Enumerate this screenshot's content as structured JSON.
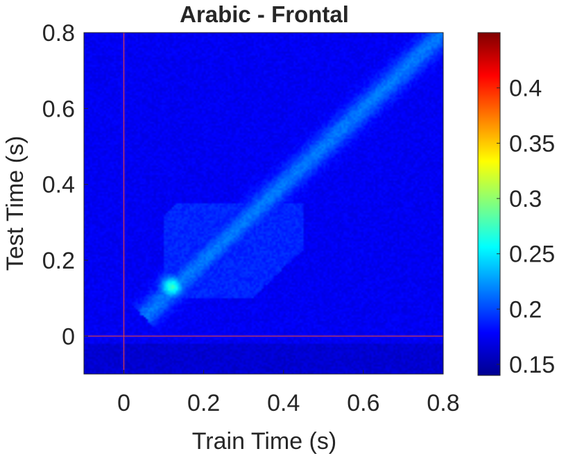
{
  "chart_data": {
    "type": "heatmap",
    "title": "Arabic -  Frontal",
    "xlabel": "Train Time (s)",
    "ylabel": "Test Time (s)",
    "xlim": [
      -0.1,
      0.8
    ],
    "ylim": [
      -0.1,
      0.8
    ],
    "xticks": [
      0,
      0.2,
      0.4,
      0.6,
      0.8
    ],
    "xtick_labels": [
      "0",
      "0.2",
      "0.4",
      "0.6",
      "0.8"
    ],
    "yticks": [
      0,
      0.2,
      0.4,
      0.6,
      0.8
    ],
    "ytick_labels": [
      "0",
      "0.2",
      "0.4",
      "0.6",
      "0.8"
    ],
    "colormap": "jet",
    "clim": [
      0.14,
      0.45
    ],
    "colorbar_ticks": [
      0.15,
      0.2,
      0.25,
      0.3,
      0.35,
      0.4
    ],
    "colorbar_tick_labels": [
      "0.15",
      "0.2",
      "0.25",
      "0.3",
      "0.35",
      "0.4"
    ],
    "reference_lines": {
      "x": 0,
      "y": 0,
      "color": "#e0404a"
    },
    "grid": false,
    "background_value": 0.175,
    "features": [
      {
        "kind": "diagonal-band",
        "from": [
          0.08,
          0.08
        ],
        "to": [
          0.8,
          0.8
        ],
        "peak_value": 0.215
      },
      {
        "kind": "spot",
        "x": 0.12,
        "y": 0.13,
        "peak_value": 0.27
      },
      {
        "kind": "plateau",
        "x_range": [
          0.1,
          0.45
        ],
        "y_range": [
          0.1,
          0.35
        ],
        "value": 0.19
      }
    ]
  }
}
